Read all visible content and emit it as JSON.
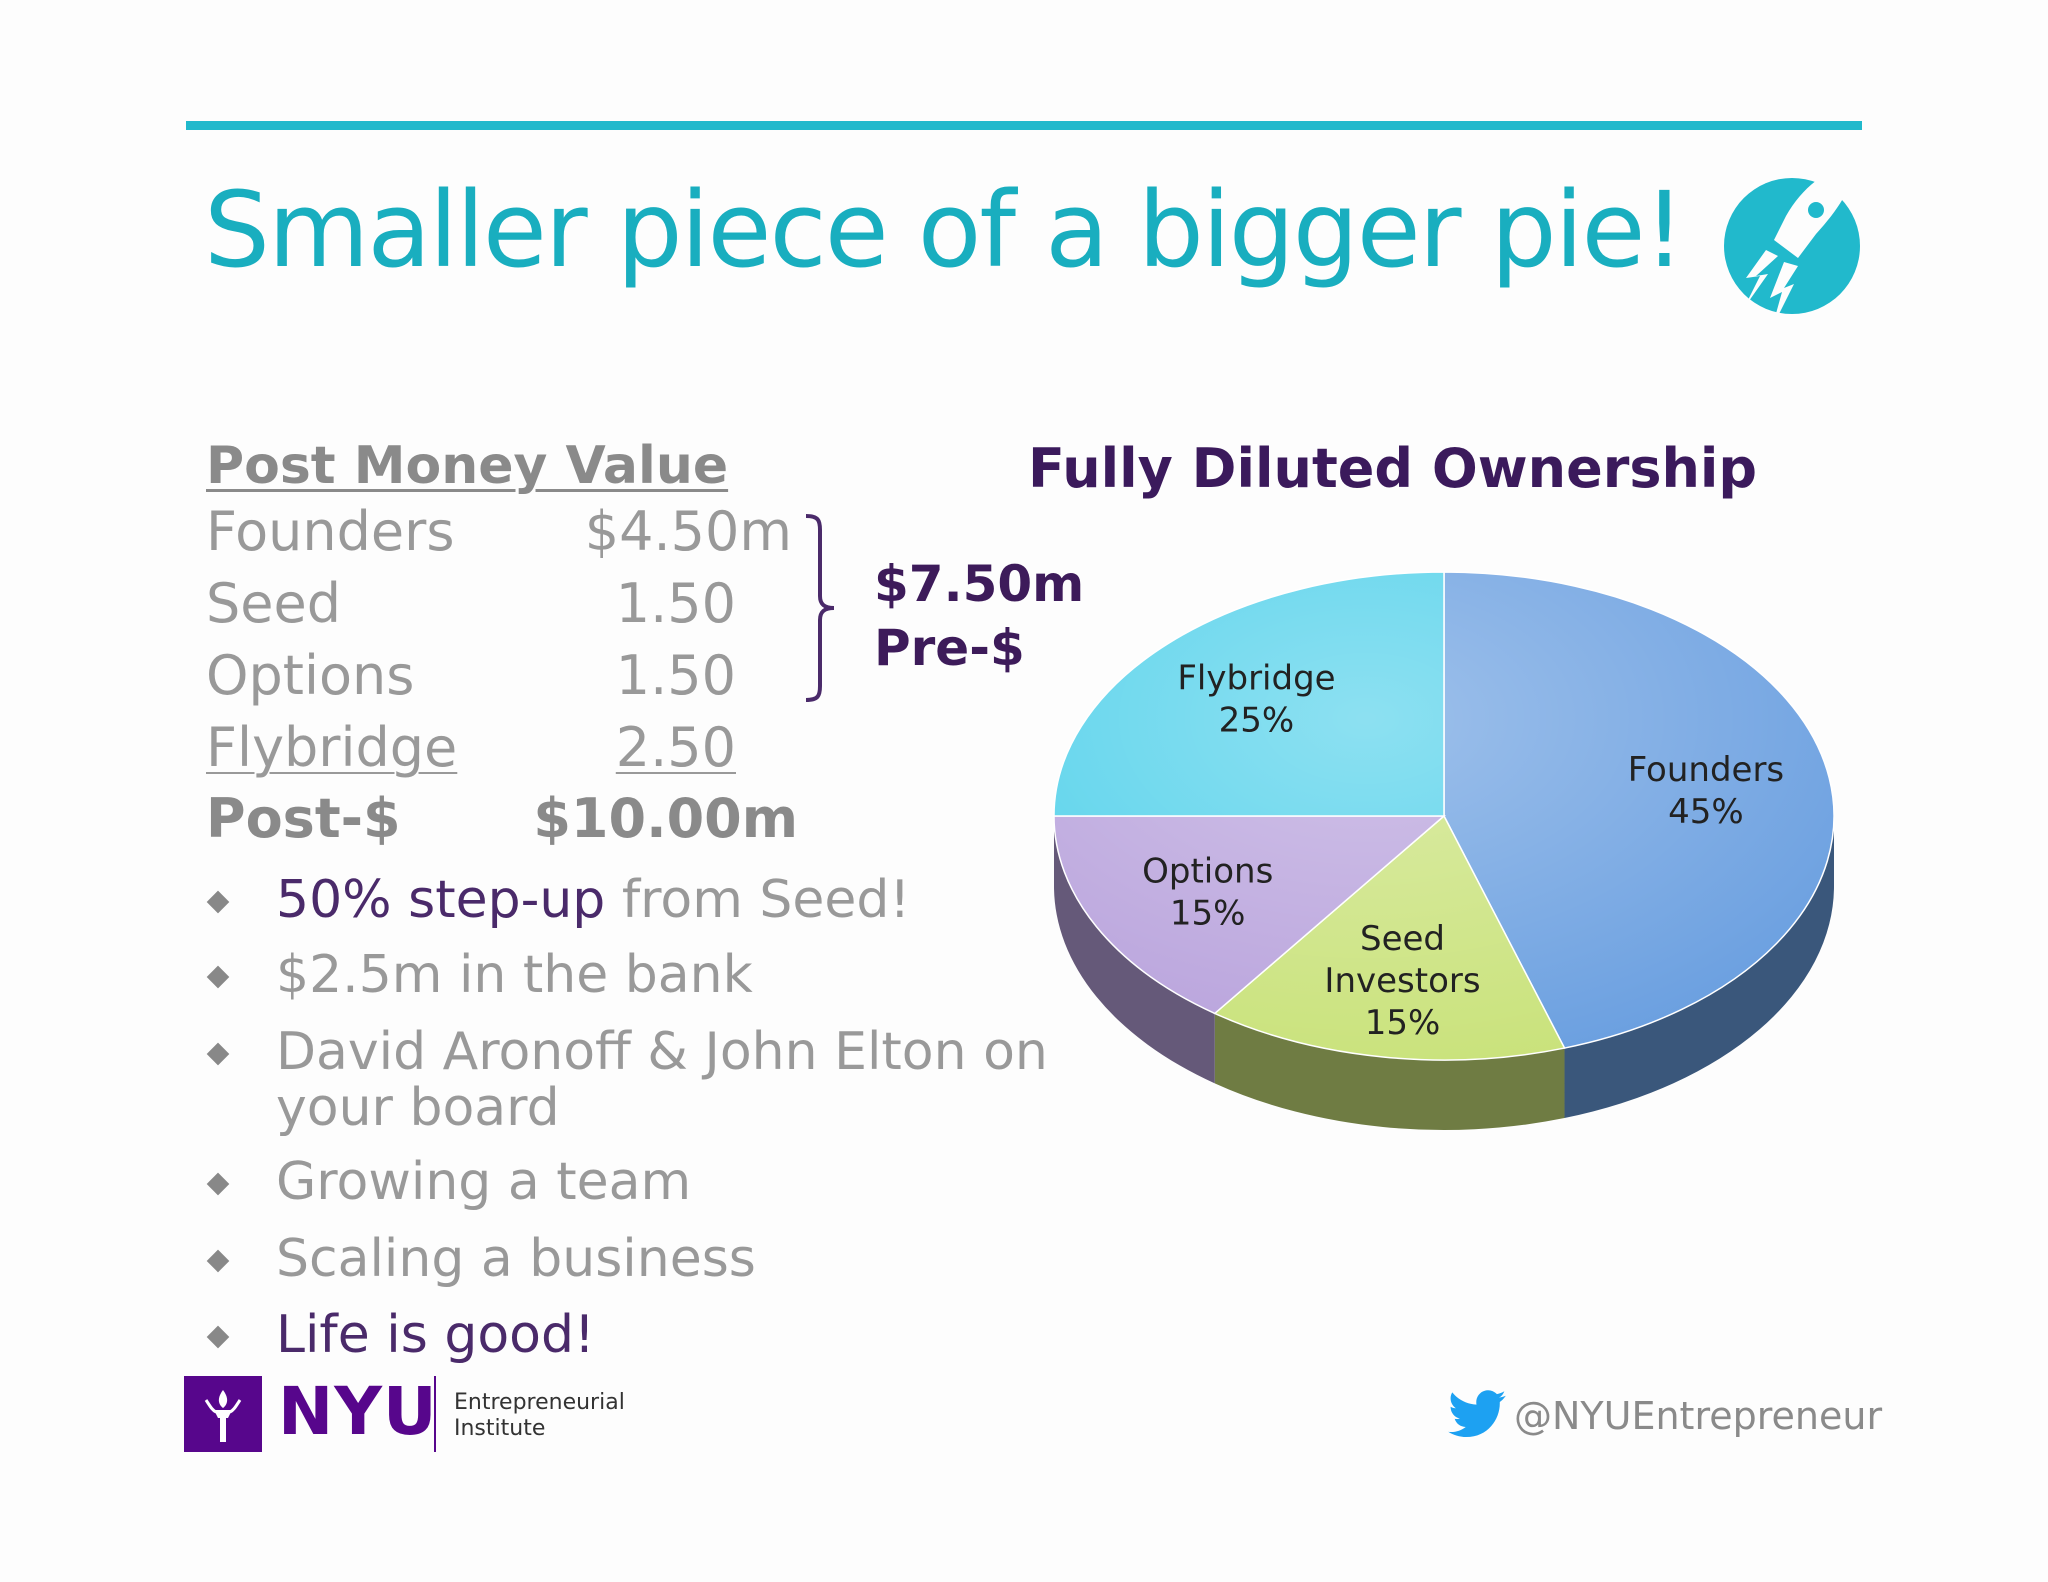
{
  "title": "Smaller piece of a bigger pie!",
  "post_money": {
    "heading": "Post Money Value",
    "rows": [
      {
        "label": "Founders",
        "value": "$4.50m"
      },
      {
        "label": "Seed",
        "value": "1.50"
      },
      {
        "label": "Options",
        "value": "1.50"
      },
      {
        "label": "Flybridge",
        "value": "2.50"
      },
      {
        "label": "Post-$",
        "value": "$10.00m"
      }
    ],
    "pre_money_value": "$7.50m",
    "pre_money_label": "Pre-$"
  },
  "bullets": [
    {
      "highlight": "50% step-up",
      "text": " from Seed!"
    },
    {
      "highlight": "",
      "text": "$2.5m in the bank"
    },
    {
      "highlight": "",
      "text": "David Aronoff & John Elton on your board"
    },
    {
      "highlight": "",
      "text": "Growing a team"
    },
    {
      "highlight": "",
      "text": "Scaling a business"
    },
    {
      "highlight": "Life is good!",
      "text": ""
    }
  ],
  "chart_data": {
    "type": "pie",
    "title": "Fully Diluted Ownership",
    "slices": [
      {
        "label": "Founders",
        "value": 45,
        "color": "#6a9fe0"
      },
      {
        "label": "Seed Investors",
        "value": 15,
        "color": "#c9e27a"
      },
      {
        "label": "Options",
        "value": 15,
        "color": "#b8a2dc"
      },
      {
        "label": "Flybridge",
        "value": 25,
        "color": "#4fd0ea"
      }
    ],
    "value_suffix": "%"
  },
  "footer": {
    "logo_text": "NYU",
    "institute_line1": "Entrepreneurial",
    "institute_line2": "Institute",
    "twitter_handle": "@NYUEntrepreneur"
  },
  "colors": {
    "accent": "#21b9cc",
    "title": "#19aebf",
    "purple": "#57068c",
    "dark_purple": "#3b1a5c",
    "grey_text": "#999999"
  }
}
